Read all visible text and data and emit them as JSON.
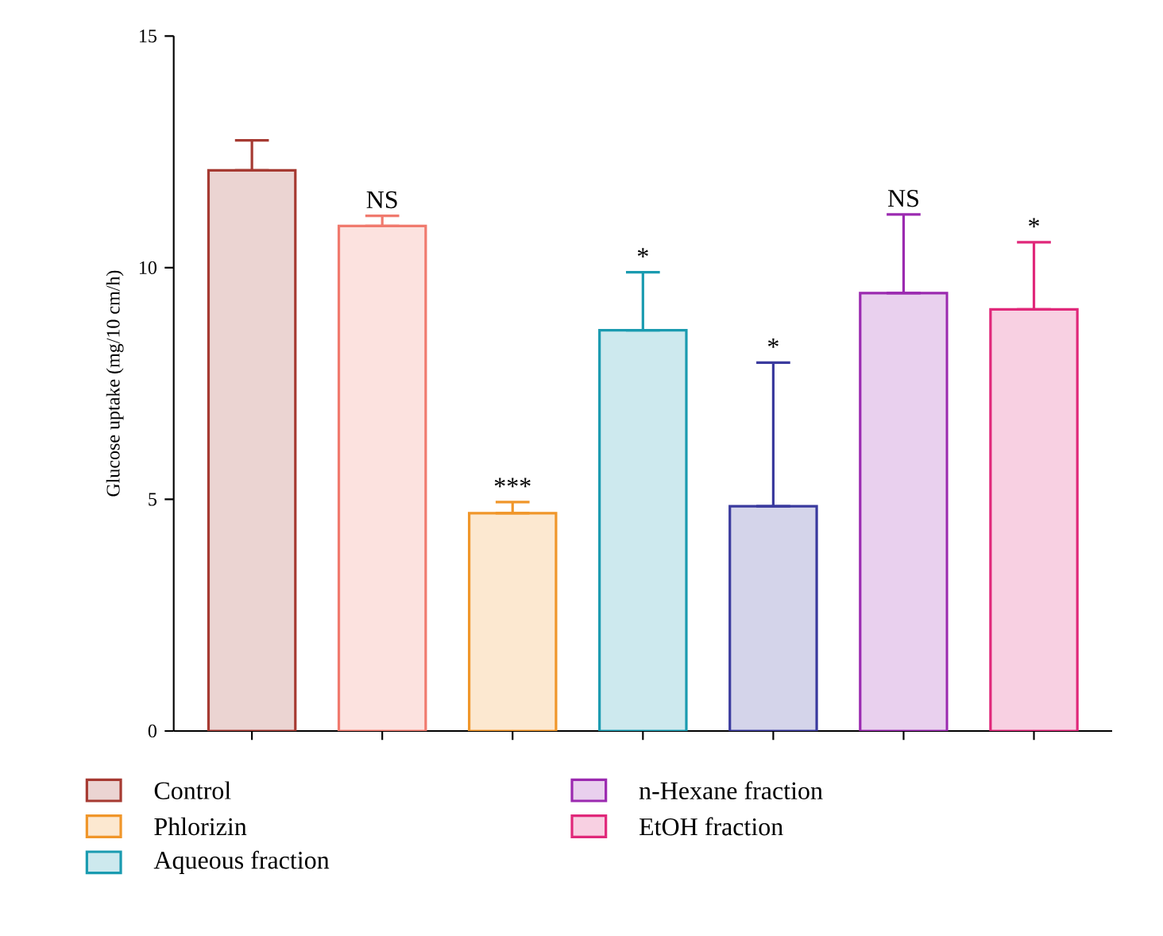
{
  "chart_data": {
    "type": "bar",
    "ylabel": "Glucose uptake (mg/10 cm/h)",
    "categories": [
      null,
      null,
      null,
      null,
      null,
      null,
      null
    ],
    "ylim": [
      0,
      15
    ],
    "yticks": [
      0,
      5,
      10,
      15
    ],
    "legend": "bottom",
    "series": [
      {
        "name": "Control",
        "color": "#a63a32",
        "values": [
          12.1,
          null,
          null,
          null,
          null,
          null,
          null
        ],
        "errors": [
          [
            12.1,
            12.75
          ],
          null,
          null,
          null,
          null,
          null,
          null
        ]
      },
      {
        "color": "#f07a6e",
        "values": [
          null,
          10.9,
          null,
          null,
          null,
          null,
          null
        ],
        "errors": [
          null,
          [
            10.9,
            11.12
          ],
          null,
          null,
          null,
          null,
          null
        ]
      },
      {
        "name": "Phlorizin",
        "color": "#f0962a",
        "values": [
          null,
          null,
          4.7,
          null,
          null,
          null,
          null
        ],
        "errors": [
          null,
          null,
          [
            4.7,
            4.94
          ],
          null,
          null,
          null,
          null
        ]
      },
      {
        "name": "Aqueous fraction",
        "color": "#1a9bb0",
        "values": [
          null,
          null,
          null,
          8.65,
          null,
          null,
          null
        ],
        "errors": [
          null,
          null,
          null,
          [
            8.65,
            9.9
          ],
          null,
          null,
          null
        ]
      },
      {
        "color": "#3a3a9e",
        "values": [
          null,
          null,
          null,
          null,
          4.85,
          null,
          null
        ],
        "errors": [
          null,
          null,
          null,
          null,
          [
            4.85,
            7.95
          ],
          null,
          null
        ]
      },
      {
        "name": "n-Hexane fraction",
        "color": "#9b2ab0",
        "values": [
          null,
          null,
          null,
          null,
          null,
          9.45,
          null
        ],
        "errors": [
          null,
          null,
          null,
          null,
          null,
          [
            9.45,
            11.15
          ],
          null
        ]
      },
      {
        "name": "EtOH fraction",
        "color": "#e0287a",
        "values": [
          null,
          null,
          null,
          null,
          null,
          null,
          9.1
        ],
        "errors": [
          null,
          null,
          null,
          null,
          null,
          null,
          [
            9.1,
            10.55
          ]
        ]
      }
    ],
    "annotations": [
      "NS",
      "***",
      "*",
      "*",
      "NS",
      "*"
    ]
  }
}
